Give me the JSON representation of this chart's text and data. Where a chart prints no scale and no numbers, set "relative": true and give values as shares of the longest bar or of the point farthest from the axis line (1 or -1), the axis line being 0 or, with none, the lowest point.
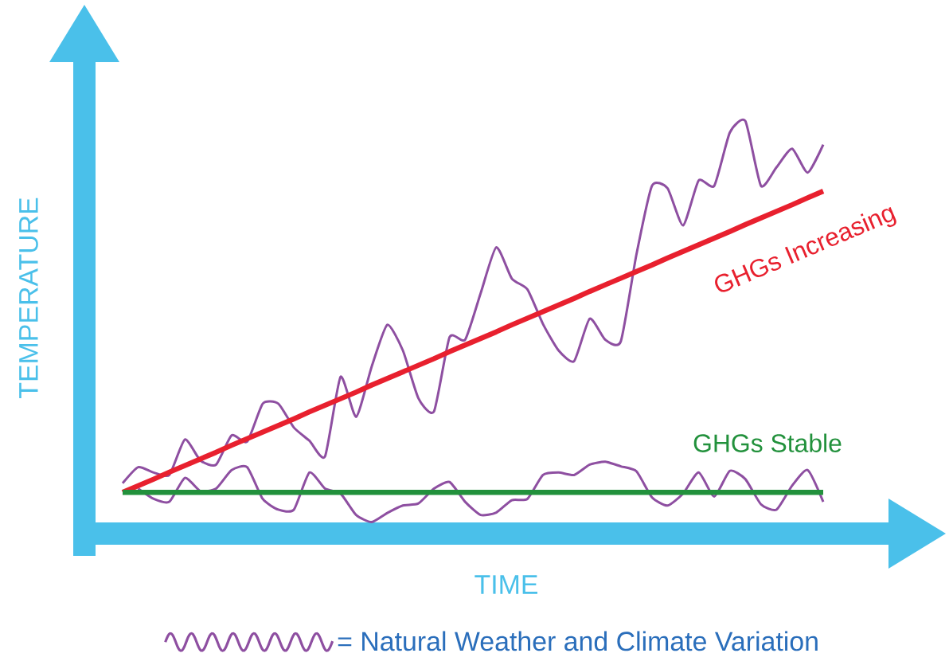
{
  "chart_data": {
    "type": "line",
    "relative": true,
    "xlabel": "TIME",
    "ylabel": "TEMPERATURE",
    "legend": "bottom",
    "marker": "none",
    "line_style": "solid",
    "categories": [
      null,
      null,
      null,
      null,
      null,
      null,
      null,
      null,
      null,
      null,
      null,
      null,
      null,
      null,
      null,
      null,
      null,
      null,
      null,
      null,
      null,
      null,
      null,
      null,
      null,
      null,
      null,
      null,
      null,
      null,
      null,
      null,
      null,
      null,
      null,
      null,
      null,
      null,
      null,
      null,
      null,
      null,
      null,
      null,
      null,
      null
    ],
    "series": [
      {
        "name": "= Natural Weather and Climate Variation",
        "color": "#8e4fa1",
        "values": [
          0.122,
          0.161,
          0.148,
          0.142,
          0.228,
          0.177,
          0.167,
          0.238,
          0.223,
          0.315,
          0.315,
          0.257,
          0.225,
          0.187,
          0.38,
          0.283,
          0.405,
          0.506,
          0.444,
          0.328,
          0.296,
          0.476,
          0.47,
          0.583,
          0.694,
          0.618,
          0.592,
          0.508,
          0.444,
          0.418,
          0.521,
          0.47,
          0.466,
          0.676,
          0.843,
          0.837,
          0.747,
          0.856,
          0.843,
          0.972,
          1.0,
          0.843,
          0.888,
          0.933,
          0.875,
          0.943
        ]
      },
      {
        "color": "#8e4fa1",
        "values": [
          null,
          0.109,
          0.084,
          0.077,
          0.135,
          0.103,
          0.109,
          0.154,
          0.161,
          0.084,
          0.058,
          0.058,
          0.148,
          0.109,
          0.097,
          0.045,
          0.028,
          0.05,
          0.068,
          0.073,
          0.109,
          0.125,
          0.077,
          0.045,
          0.051,
          0.081,
          0.084,
          0.142,
          0.148,
          0.142,
          0.167,
          0.174,
          0.163,
          0.151,
          0.088,
          0.068,
          0.097,
          0.148,
          0.09,
          0.152,
          0.132,
          0.071,
          0.058,
          0.116,
          0.154,
          0.077
        ]
      },
      {
        "color": "#e8202e",
        "values": [
          0.1,
          0.116,
          0.132,
          0.149,
          0.165,
          0.181,
          0.197,
          0.214,
          0.23,
          0.246,
          0.262,
          0.278,
          0.295,
          0.311,
          0.327,
          0.343,
          0.36,
          0.376,
          0.392,
          0.408,
          0.424,
          0.441,
          0.457,
          0.473,
          0.489,
          0.506,
          0.522,
          0.538,
          0.554,
          0.57,
          0.587,
          0.603,
          0.619,
          0.635,
          0.651,
          0.668,
          0.684,
          0.7,
          0.716,
          0.732,
          0.749,
          0.765,
          0.781,
          0.797,
          0.814,
          0.83
        ]
      },
      {
        "color": "#22913c",
        "values": [
          0.1,
          0.1,
          0.1,
          0.1,
          0.1,
          0.1,
          0.1,
          0.1,
          0.1,
          0.1,
          0.1,
          0.1,
          0.1,
          0.1,
          0.1,
          0.1,
          0.1,
          0.1,
          0.1,
          0.1,
          0.1,
          0.1,
          0.1,
          0.1,
          0.1,
          0.1,
          0.1,
          0.1,
          0.1,
          0.1,
          0.1,
          0.1,
          0.1,
          0.1,
          0.1,
          0.1,
          0.1,
          0.1,
          0.1,
          0.1,
          0.1,
          0.1,
          0.1,
          0.1,
          0.1,
          0.1
        ]
      }
    ],
    "annotations": [
      "GHGs Increasing",
      "GHGs Stable"
    ]
  }
}
